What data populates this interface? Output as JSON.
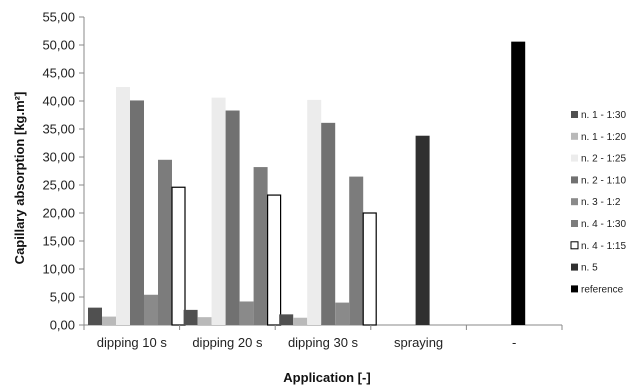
{
  "chart_data": {
    "type": "bar",
    "xlabel": "Application [-]",
    "ylabel": "Capillary absorption [kg.m²]",
    "ylim": [
      0,
      55
    ],
    "ytick_step": 5,
    "ytick_labels": [
      "0,00",
      "5,00",
      "10,00",
      "15,00",
      "20,00",
      "25,00",
      "30,00",
      "35,00",
      "40,00",
      "45,00",
      "50,00",
      "55,00"
    ],
    "grid": false,
    "legend_position": "right",
    "categories": [
      "dipping 10 s",
      "dipping 20 s",
      "dipping 30 s",
      "spraying",
      "-"
    ],
    "series": [
      {
        "name": "n. 1 - 1:30",
        "color": "#505050",
        "border": "#505050",
        "values": [
          3.1,
          2.7,
          1.9,
          null,
          null
        ]
      },
      {
        "name": "n. 1 - 1:20",
        "color": "#b9b9b9",
        "border": "#b9b9b9",
        "values": [
          1.5,
          1.4,
          1.3,
          null,
          null
        ]
      },
      {
        "name": "n. 2 - 1:25",
        "color": "#ececec",
        "border": "#ececec",
        "values": [
          42.5,
          40.6,
          40.2,
          null,
          null
        ]
      },
      {
        "name": "n. 2 - 1:10",
        "color": "#717171",
        "border": "#717171",
        "values": [
          40.1,
          38.3,
          36.1,
          null,
          null
        ]
      },
      {
        "name": "n. 3 - 1:2",
        "color": "#8a8a8a",
        "border": "#8a8a8a",
        "values": [
          5.4,
          4.2,
          4.0,
          null,
          null
        ]
      },
      {
        "name": "n. 4 - 1:30",
        "color": "#7c7c7c",
        "border": "#7c7c7c",
        "values": [
          29.5,
          28.2,
          26.5,
          null,
          null
        ]
      },
      {
        "name": "n. 4 - 1:15",
        "color": "#ffffff",
        "border": "#000000",
        "values": [
          24.6,
          23.2,
          20.0,
          null,
          null
        ]
      },
      {
        "name": "n. 5",
        "color": "#303030",
        "border": "#303030",
        "values": [
          null,
          null,
          null,
          33.8,
          null
        ]
      },
      {
        "name": "reference",
        "color": "#000000",
        "border": "#000000",
        "values": [
          null,
          null,
          null,
          null,
          50.6
        ]
      }
    ]
  }
}
